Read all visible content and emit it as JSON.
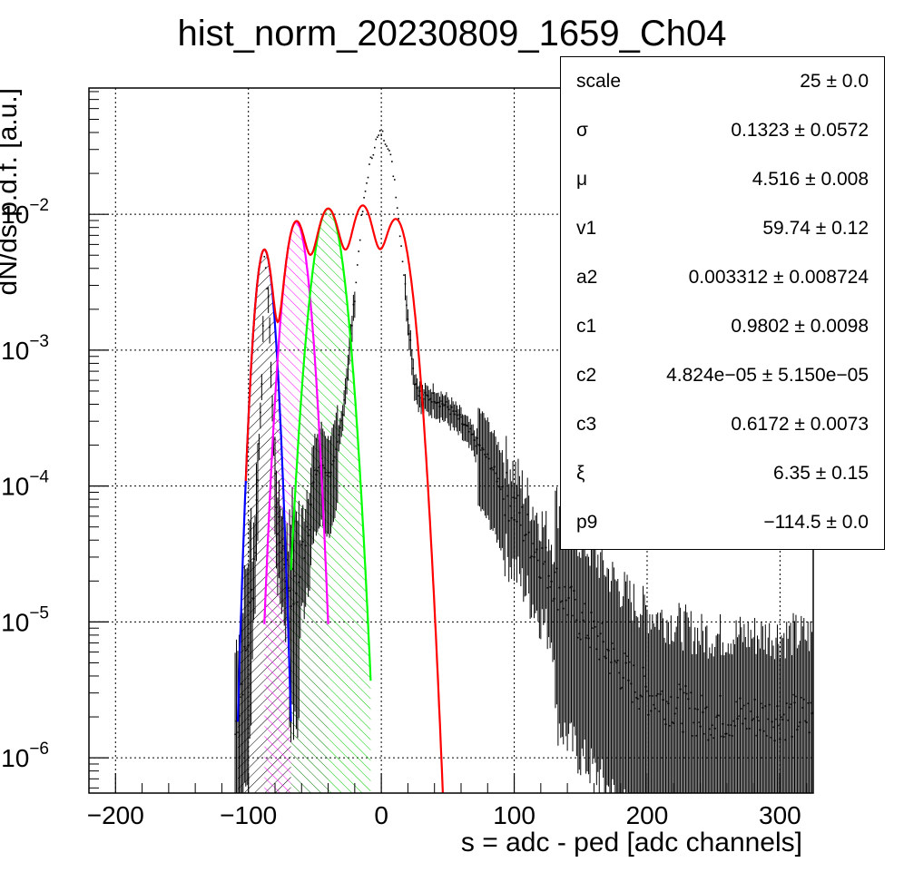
{
  "chart_data": {
    "type": "histogram-fit",
    "title": "hist_norm_20230809_1659_Ch04",
    "xlabel": "s = adc - ped [adc channels]",
    "ylabel": "dN/ds p.d.f. [a.u.]",
    "xlim": [
      -220,
      325
    ],
    "ylim": [
      5.5e-07,
      0.085
    ],
    "yscale": "log",
    "grid": true,
    "x_ticks": [
      {
        "value": -200,
        "label": "−200"
      },
      {
        "value": -100,
        "label": "−100"
      },
      {
        "value": 0,
        "label": "0"
      },
      {
        "value": 100,
        "label": "100"
      },
      {
        "value": 200,
        "label": "200"
      },
      {
        "value": 300,
        "label": "300"
      }
    ],
    "y_ticks": [
      {
        "value": 1e-06,
        "exponent": "−6"
      },
      {
        "value": 1e-05,
        "exponent": "−5"
      },
      {
        "value": 0.0001,
        "exponent": "−4"
      },
      {
        "value": 0.001,
        "exponent": "−3"
      },
      {
        "value": 0.01,
        "exponent": "−2"
      }
    ],
    "y_tick_base": "10",
    "colors": {
      "data": "#000000",
      "total_fit": "#ff0000",
      "peak1": "#0000ff",
      "peak2": "#ff00ff",
      "peak3": "#00ff00"
    },
    "data_profile": {
      "x": [
        -115,
        -110,
        -100,
        -95,
        -90,
        -88,
        -85,
        -82,
        -80,
        -77,
        -75,
        -70,
        -65,
        -62,
        -60,
        -55,
        -52,
        -50,
        -45,
        -40,
        -35,
        -30,
        -25,
        -20,
        -15,
        -10,
        -5,
        0,
        5,
        10,
        15,
        20,
        25,
        30,
        35,
        40,
        50,
        60,
        70,
        80,
        90,
        100,
        110,
        120,
        130,
        140,
        150,
        160,
        170,
        180,
        190,
        200,
        220,
        240,
        260,
        280,
        300,
        320
      ],
      "y": [
        1e-06,
        1.5e-06,
        8e-06,
        4e-05,
        0.0006,
        0.0045,
        0.0025,
        0.0004,
        0.00012,
        4e-05,
        4e-05,
        2e-05,
        1.6e-05,
        1.8e-05,
        3e-05,
        6e-05,
        9e-05,
        0.00012,
        0.00015,
        0.00012,
        0.00015,
        0.0003,
        0.0008,
        0.0025,
        0.009,
        0.02,
        0.033,
        0.04,
        0.033,
        0.018,
        0.006,
        0.0018,
        0.0006,
        0.00045,
        0.00045,
        0.00045,
        0.00038,
        0.0003,
        0.00022,
        0.00016,
        0.0001,
        7e-05,
        4.5e-05,
        3e-05,
        2e-05,
        1.4e-05,
        1e-05,
        8e-06,
        6e-06,
        4.5e-06,
        3.5e-06,
        3e-06,
        2.5e-06,
        2e-06,
        2e-06,
        2e-06,
        2e-06,
        2e-06
      ]
    },
    "peaks": [
      {
        "name": "peak1",
        "mean": -88,
        "sigma": 5,
        "amplitude": 0.0055,
        "x_range": [
          -108,
          -68
        ]
      },
      {
        "name": "peak2",
        "mean": -64,
        "sigma": 6.5,
        "amplitude": 0.0088,
        "x_range": [
          -88,
          -40
        ]
      },
      {
        "name": "peak3",
        "mean": -40,
        "sigma": 8,
        "amplitude": 0.011,
        "x_range": [
          -68,
          -8
        ]
      }
    ],
    "total_fit": {
      "x_range": [
        -102,
        47
      ],
      "components": [
        {
          "mean": -88,
          "sigma": 5,
          "amplitude": 0.0055
        },
        {
          "mean": -64,
          "sigma": 6.5,
          "amplitude": 0.0088
        },
        {
          "mean": -40,
          "sigma": 8,
          "amplitude": 0.011
        },
        {
          "mean": -14,
          "sigma": 7.5,
          "amplitude": 0.0115
        },
        {
          "mean": 11,
          "sigma": 8,
          "amplitude": 0.0092
        }
      ]
    },
    "stats": [
      {
        "name": "scale",
        "value": "25 ± 0.0"
      },
      {
        "name": "σ",
        "value": "0.1323 ± 0.0572"
      },
      {
        "name": "μ",
        "value": "4.516 ± 0.008"
      },
      {
        "name": "v1",
        "value": "59.74 ± 0.12"
      },
      {
        "name": "a2",
        "value": "0.003312 ± 0.008724"
      },
      {
        "name": "c1",
        "value": "0.9802 ± 0.0098"
      },
      {
        "name": "c2",
        "value": "4.824e−05 ± 5.150e−05"
      },
      {
        "name": "c3",
        "value": "0.6172 ± 0.0073"
      },
      {
        "name": "ξ",
        "value": "6.35 ± 0.15"
      },
      {
        "name": "p9",
        "value": "−114.5 ± 0.0"
      }
    ]
  }
}
